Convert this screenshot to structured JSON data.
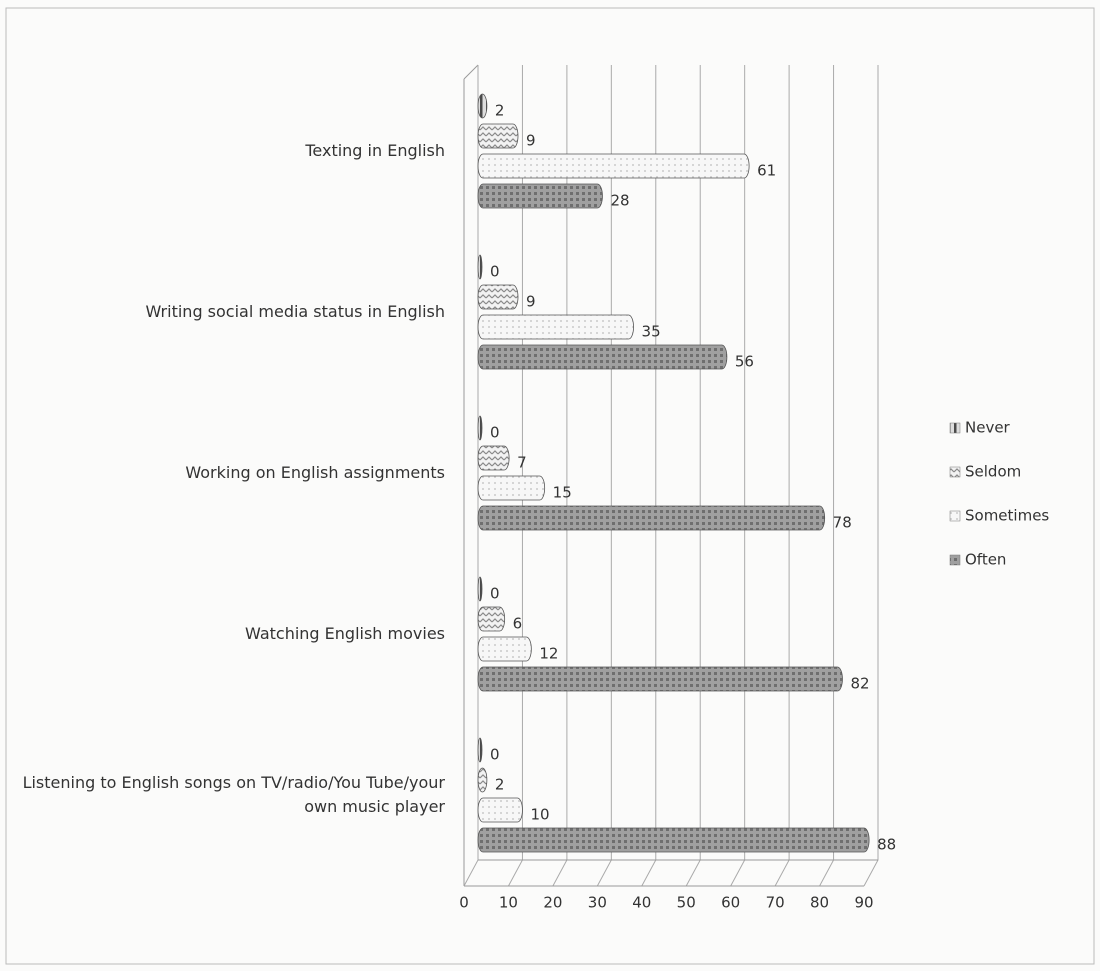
{
  "chart_data": {
    "type": "bar",
    "orientation": "horizontal",
    "categories": [
      "Texting in English",
      "Writing social media status in English",
      "Working on English assignments",
      "Watching English movies",
      "Listening to English songs on TV/radio/You Tube/your own music player"
    ],
    "series": [
      {
        "name": "Never",
        "color": "#4a4a4a",
        "values": [
          2,
          0,
          0,
          0,
          0
        ]
      },
      {
        "name": "Seldom",
        "color": "#8a8a8a",
        "values": [
          9,
          9,
          7,
          6,
          2
        ]
      },
      {
        "name": "Sometimes",
        "color": "#bdbdbd",
        "values": [
          61,
          35,
          15,
          12,
          10
        ]
      },
      {
        "name": "Often",
        "color": "#6f6f6f",
        "values": [
          28,
          56,
          78,
          82,
          88
        ]
      }
    ],
    "xlim": [
      0,
      90
    ],
    "xticks": [
      0,
      10,
      20,
      30,
      40,
      50,
      60,
      70,
      80,
      90
    ],
    "grid": true,
    "legend": "right"
  }
}
